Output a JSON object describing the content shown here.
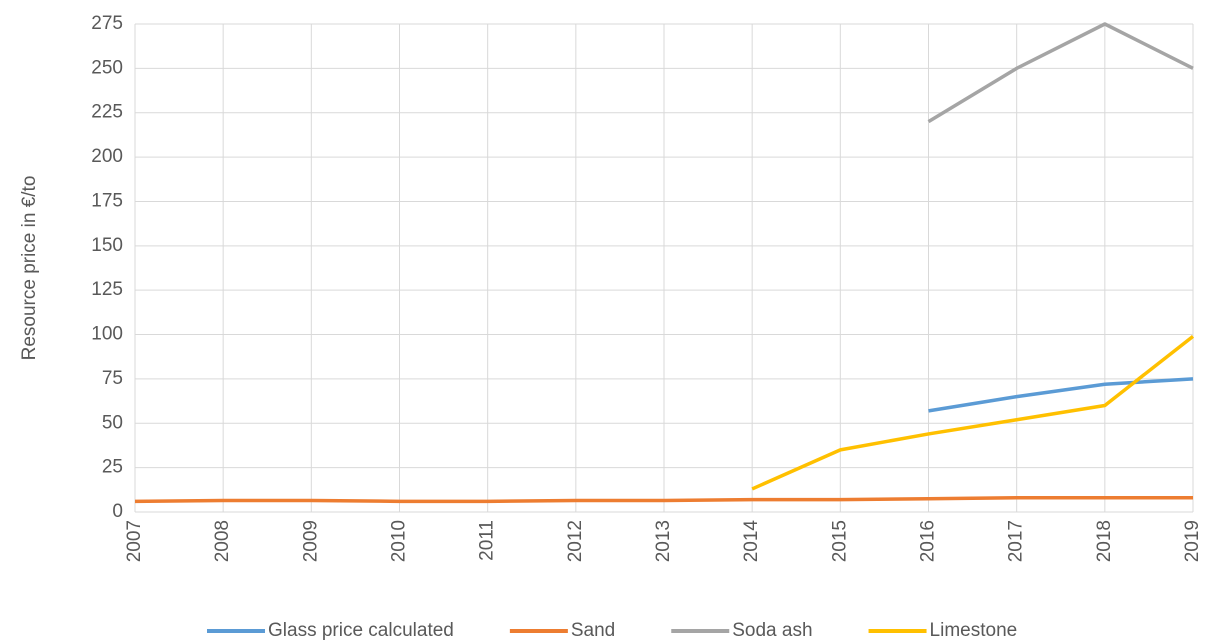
{
  "chart_data": {
    "type": "line",
    "y_label": "Resource price in €/to",
    "x": [
      2007,
      2008,
      2009,
      2010,
      2011,
      2012,
      2013,
      2014,
      2015,
      2016,
      2017,
      2018,
      2019
    ],
    "xlim": [
      2007,
      2019
    ],
    "xticks": [
      2007,
      2008,
      2009,
      2010,
      2011,
      2012,
      2013,
      2014,
      2015,
      2016,
      2017,
      2018,
      2019
    ],
    "ylim": [
      0,
      275
    ],
    "yticks": [
      0,
      25,
      50,
      75,
      100,
      125,
      150,
      175,
      200,
      225,
      250,
      275
    ],
    "grid": true,
    "legend": "bottom",
    "series": [
      {
        "name": "Glass price calculated",
        "color": "#5b9bd5",
        "values": [
          null,
          null,
          null,
          null,
          null,
          null,
          null,
          null,
          null,
          57,
          65,
          72,
          75
        ]
      },
      {
        "name": "Sand",
        "color": "#ed7d31",
        "values": [
          6,
          6.5,
          6.5,
          6,
          6,
          6.5,
          6.5,
          7,
          7,
          7.5,
          8,
          8,
          8
        ]
      },
      {
        "name": "Soda ash",
        "color": "#a5a5a5",
        "values": [
          null,
          null,
          null,
          null,
          null,
          null,
          null,
          null,
          null,
          220,
          250,
          275,
          250
        ]
      },
      {
        "name": "Limestone",
        "color": "#ffc000",
        "values": [
          null,
          null,
          null,
          null,
          null,
          null,
          null,
          13,
          35,
          44,
          52,
          60,
          99
        ]
      }
    ]
  }
}
